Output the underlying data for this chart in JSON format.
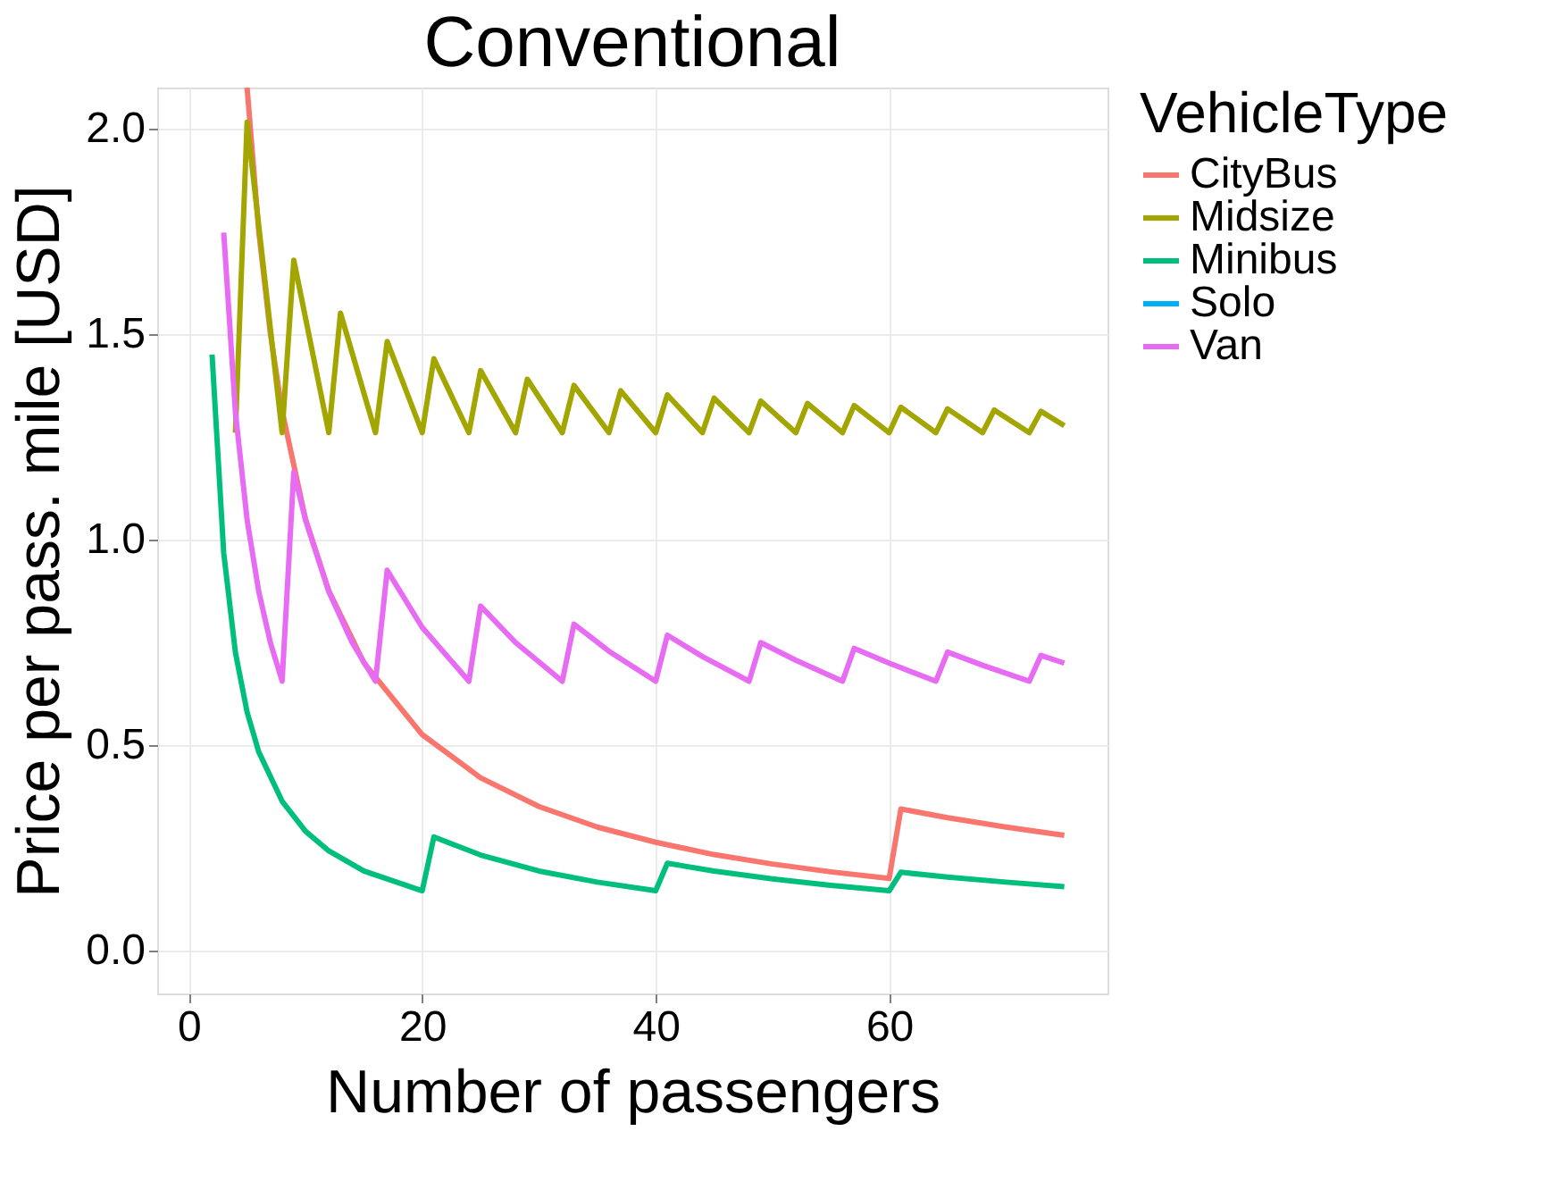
{
  "chart_data": {
    "type": "line",
    "title": "Conventional",
    "xlabel": "Number of passengers",
    "ylabel": "Price per pass. mile [USD]",
    "legend_title": "VehicleType",
    "xlim": [
      -2.7,
      78.7
    ],
    "xticks": [
      0,
      20,
      40,
      60
    ],
    "ylim": [
      -0.105,
      2.1
    ],
    "yticks": [
      {
        "value": 0,
        "label": "0.0"
      },
      {
        "value": 0.5,
        "label": "0.5"
      },
      {
        "value": 1,
        "label": "1.0"
      },
      {
        "value": 1.5,
        "label": "1.5"
      },
      {
        "value": 2,
        "label": "2.0"
      }
    ],
    "grid": true,
    "legend": "right",
    "line_style": "solid",
    "marker": "none",
    "series": [
      {
        "name": "CityBus",
        "color": "#f8766d",
        "x": [
          5,
          6,
          7,
          8,
          10,
          12,
          15,
          20,
          25,
          30,
          35,
          40,
          45,
          50,
          55,
          60,
          61,
          65,
          70,
          75
        ],
        "values": [
          2.1,
          1.75,
          1.5,
          1.313,
          1.05,
          0.875,
          0.7,
          0.525,
          0.42,
          0.35,
          0.3,
          0.263,
          0.233,
          0.21,
          0.191,
          0.175,
          0.344,
          0.323,
          0.3,
          0.28
        ]
      },
      {
        "name": "Midsize",
        "color": "#a3a500",
        "x": [
          4,
          5,
          8,
          9,
          12,
          13,
          16,
          17,
          20,
          21,
          24,
          25,
          28,
          29,
          32,
          33,
          36,
          37,
          40,
          41,
          44,
          45,
          48,
          49,
          52,
          53,
          56,
          57,
          60,
          61,
          64,
          65,
          68,
          69,
          72,
          73,
          75
        ],
        "values": [
          1.26,
          2.016,
          1.26,
          1.68,
          1.26,
          1.551,
          1.26,
          1.482,
          1.26,
          1.44,
          1.26,
          1.411,
          1.26,
          1.39,
          1.26,
          1.375,
          1.26,
          1.362,
          1.26,
          1.352,
          1.26,
          1.344,
          1.26,
          1.337,
          1.26,
          1.331,
          1.26,
          1.326,
          1.26,
          1.322,
          1.26,
          1.318,
          1.26,
          1.315,
          1.26,
          1.312,
          1.277
        ]
      },
      {
        "name": "Minibus",
        "color": "#00bf7d",
        "x": [
          2,
          3,
          4,
          5,
          6,
          8,
          10,
          12,
          15,
          20,
          21,
          25,
          30,
          35,
          40,
          41,
          45,
          50,
          55,
          60,
          61,
          65,
          70,
          75
        ],
        "values": [
          1.45,
          0.967,
          0.725,
          0.58,
          0.483,
          0.363,
          0.29,
          0.242,
          0.193,
          0.145,
          0.276,
          0.232,
          0.193,
          0.166,
          0.145,
          0.212,
          0.193,
          0.174,
          0.158,
          0.145,
          0.19,
          0.178,
          0.166,
          0.155
        ]
      },
      {
        "name": "Solo",
        "color": "#00b0f6"
      },
      {
        "name": "Van",
        "color": "#e76bf3",
        "x": [
          3,
          4,
          5,
          6,
          7,
          8,
          9,
          10,
          12,
          14,
          16,
          17,
          20,
          24,
          25,
          28,
          32,
          33,
          36,
          40,
          41,
          44,
          48,
          49,
          52,
          56,
          57,
          60,
          64,
          65,
          68,
          72,
          73,
          75
        ],
        "values": [
          1.747,
          1.31,
          1.048,
          0.873,
          0.749,
          0.655,
          1.164,
          1.048,
          0.873,
          0.749,
          0.655,
          0.925,
          0.786,
          0.655,
          0.838,
          0.749,
          0.655,
          0.794,
          0.728,
          0.655,
          0.767,
          0.715,
          0.655,
          0.749,
          0.706,
          0.655,
          0.735,
          0.699,
          0.655,
          0.726,
          0.694,
          0.655,
          0.718,
          0.699
        ]
      }
    ]
  }
}
